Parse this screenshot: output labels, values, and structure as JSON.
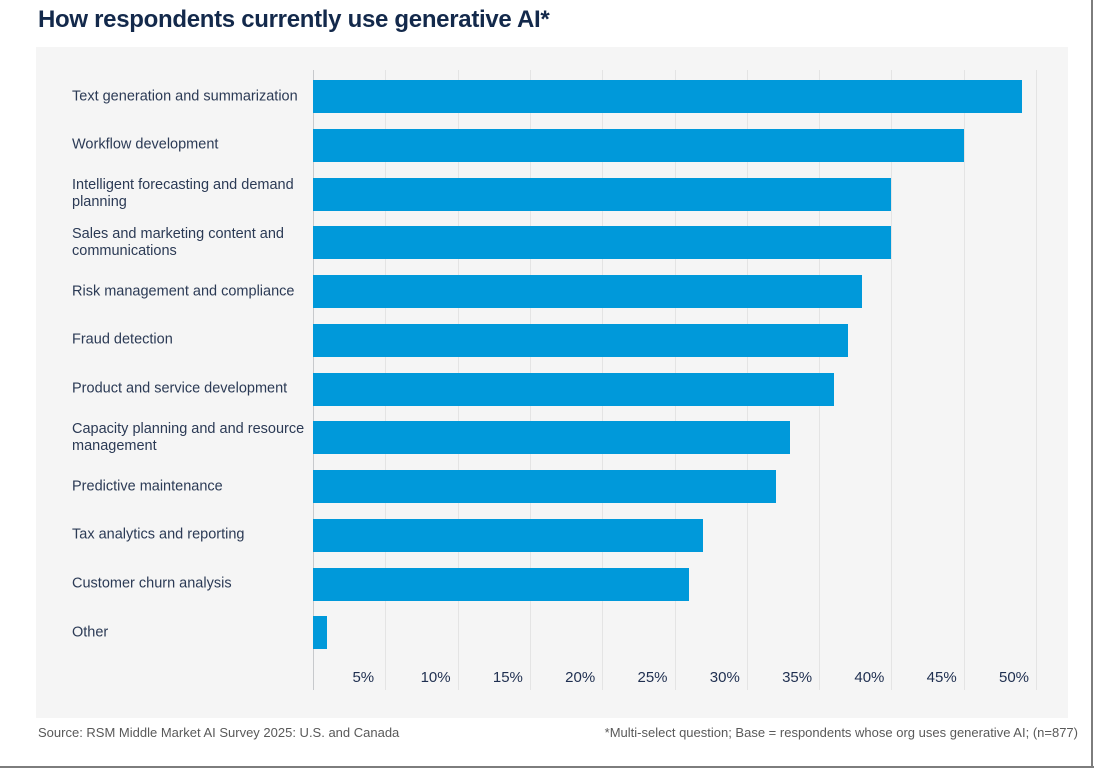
{
  "title": "How respondents currently use generative AI*",
  "chart_data": {
    "type": "bar",
    "orientation": "horizontal",
    "title": "How respondents currently use generative AI*",
    "categories": [
      "Text generation and summarization",
      "Workflow development",
      "Intelligent forecasting and demand planning",
      "Sales and marketing content and communications",
      "Risk management and compliance",
      "Fraud detection",
      "Product and service development",
      "Capacity planning and and resource management",
      "Predictive maintenance",
      "Tax analytics and reporting",
      "Customer churn analysis",
      "Other"
    ],
    "values": [
      49,
      45,
      40,
      40,
      38,
      37,
      36,
      33,
      32,
      27,
      26,
      1
    ],
    "unit": "%",
    "xlim": [
      0,
      50
    ],
    "x_ticks": [
      "5%",
      "10%",
      "15%",
      "20%",
      "25%",
      "30%",
      "35%",
      "40%",
      "45%",
      "50%"
    ],
    "grid": true,
    "legend": "none",
    "bar_color": "#0099DA",
    "panel_background": "#F5F5F5",
    "gridline_color": "#E4E4E4",
    "label_color": "#2B3A55",
    "title_color": "#13294B"
  },
  "footer": {
    "source": "Source: RSM Middle Market AI Survey 2025: U.S. and Canada",
    "note": "*Multi-select question; Base = respondents whose org uses generative AI; (n=877)"
  }
}
